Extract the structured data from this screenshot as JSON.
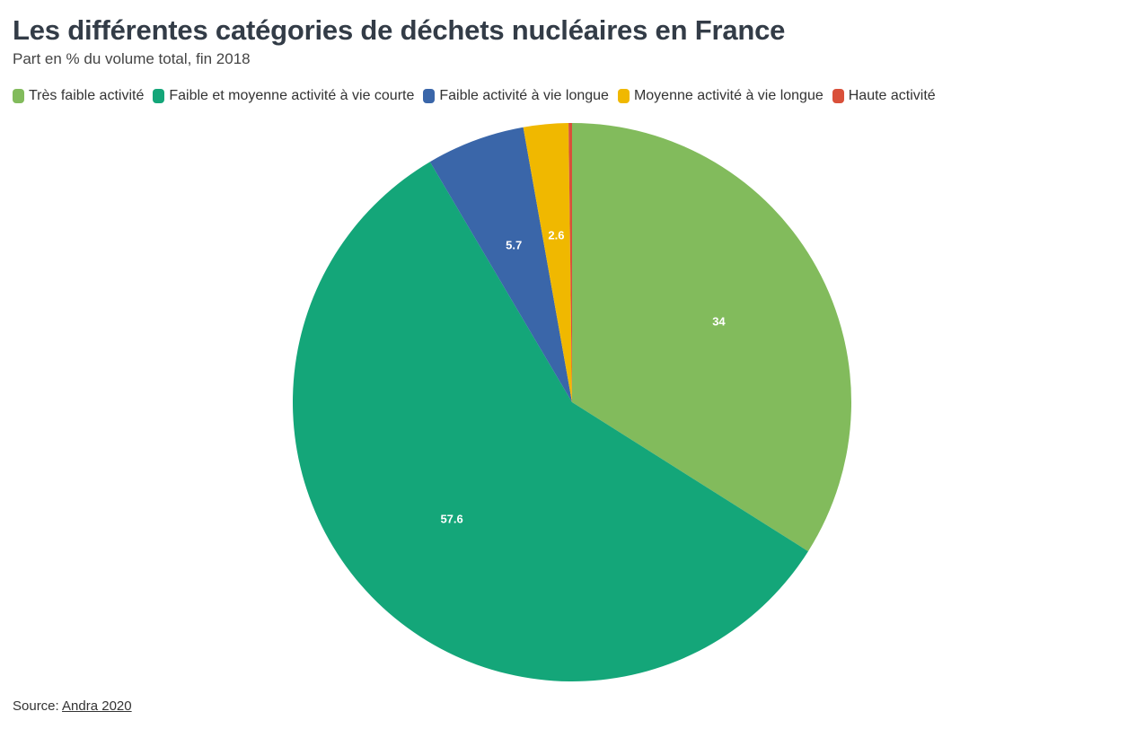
{
  "header": {
    "title": "Les différentes catégories de déchets nucléaires en France",
    "subtitle": "Part en % du volume total, fin 2018"
  },
  "footer": {
    "source_label": "Source:",
    "source_link": "Andra 2020"
  },
  "chart_data": {
    "type": "pie",
    "title": "Les différentes catégories de déchets nucléaires en France",
    "subtitle": "Part en % du volume total, fin 2018",
    "legend_position": "top-left",
    "start_angle_deg": 0,
    "direction": "clockwise",
    "slices": [
      {
        "label": "Très faible activité",
        "value": 34,
        "color": "#82bb5c",
        "show_label": true
      },
      {
        "label": "Faible et moyenne activité à vie courte",
        "value": 57.6,
        "color": "#14a679",
        "show_label": true
      },
      {
        "label": "Faible activité à vie longue",
        "value": 5.7,
        "color": "#3a66a9",
        "show_label": true
      },
      {
        "label": "Moyenne activité à vie longue",
        "value": 2.6,
        "color": "#f0b800",
        "show_label": true
      },
      {
        "label": "Haute activité",
        "value": 0.2,
        "color": "#d9503a",
        "show_label": false
      }
    ]
  }
}
